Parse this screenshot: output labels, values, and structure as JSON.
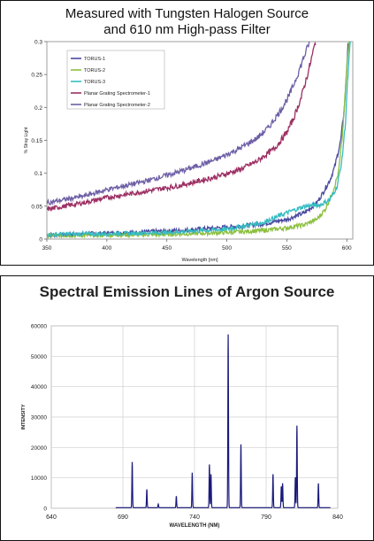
{
  "chart_data": [
    {
      "type": "line",
      "title_line1": "Measured with Tungsten Halogen Source",
      "title_line2": "and 610 nm High-pass Filter",
      "xlabel": "Wavelength [nm]",
      "ylabel": "% Stray Light",
      "xlim": [
        350,
        605
      ],
      "ylim": [
        0,
        0.3
      ],
      "xticks": [
        "350",
        "400",
        "450",
        "500",
        "550",
        "600"
      ],
      "yticks": [
        "0",
        "0.05",
        "0.1",
        "0.15",
        "0.2",
        "0.25",
        "0.3"
      ],
      "legend_position": "top-left",
      "series": [
        {
          "name": "TORUS-1",
          "color": "#4a4aa0",
          "x": [
            350,
            380,
            420,
            460,
            500,
            530,
            550,
            565,
            575,
            580,
            586,
            590,
            595,
            598,
            600,
            601
          ],
          "y": [
            0.006,
            0.008,
            0.01,
            0.013,
            0.018,
            0.023,
            0.03,
            0.04,
            0.055,
            0.07,
            0.09,
            0.11,
            0.15,
            0.2,
            0.26,
            0.3
          ]
        },
        {
          "name": "TORUS-2",
          "color": "#8cbf3f",
          "x": [
            350,
            400,
            450,
            500,
            530,
            550,
            565,
            575,
            582,
            588,
            593,
            596,
            598,
            600,
            602
          ],
          "y": [
            0.005,
            0.006,
            0.007,
            0.01,
            0.013,
            0.017,
            0.022,
            0.03,
            0.045,
            0.07,
            0.1,
            0.15,
            0.2,
            0.26,
            0.3
          ]
        },
        {
          "name": "TORUS-3",
          "color": "#35bcc2",
          "x": [
            350,
            400,
            450,
            500,
            530,
            550,
            565,
            578,
            586,
            592,
            596,
            599,
            601,
            603
          ],
          "y": [
            0.007,
            0.008,
            0.01,
            0.015,
            0.025,
            0.04,
            0.05,
            0.052,
            0.06,
            0.08,
            0.12,
            0.18,
            0.25,
            0.3
          ]
        },
        {
          "name": "Planar Grating Spectrometer-1",
          "color": "#9b2e62",
          "x": [
            350,
            380,
            400,
            430,
            460,
            490,
            510,
            525,
            540,
            550,
            556,
            562,
            568,
            574
          ],
          "y": [
            0.045,
            0.055,
            0.063,
            0.072,
            0.081,
            0.094,
            0.105,
            0.118,
            0.138,
            0.162,
            0.185,
            0.215,
            0.255,
            0.3
          ]
        },
        {
          "name": "Planar Grating Spectrometer-2",
          "color": "#6e5fa6",
          "x": [
            350,
            380,
            400,
            430,
            460,
            490,
            510,
            525,
            535,
            545,
            552,
            558,
            564,
            569
          ],
          "y": [
            0.055,
            0.065,
            0.075,
            0.087,
            0.102,
            0.12,
            0.137,
            0.153,
            0.17,
            0.196,
            0.218,
            0.245,
            0.275,
            0.3
          ]
        }
      ]
    },
    {
      "type": "line",
      "title": "Spectral Emission Lines of Argon Source",
      "xlabel": "WAVELENGTH (NM)",
      "ylabel": "INTENSITY",
      "xlim": [
        640,
        840
      ],
      "ylim": [
        0,
        60000
      ],
      "xticks": [
        "640",
        "690",
        "740",
        "790",
        "840"
      ],
      "yticks": [
        "0",
        "10000",
        "20000",
        "30000",
        "40000",
        "50000",
        "60000"
      ],
      "grid": true,
      "color": "#1a1a7a",
      "peaks": [
        {
          "x": 696.5,
          "y": 15000
        },
        {
          "x": 706.7,
          "y": 6000
        },
        {
          "x": 714.7,
          "y": 1200
        },
        {
          "x": 727.3,
          "y": 3800
        },
        {
          "x": 738.4,
          "y": 11500
        },
        {
          "x": 750.4,
          "y": 14200
        },
        {
          "x": 751.5,
          "y": 11000
        },
        {
          "x": 763.5,
          "y": 57000
        },
        {
          "x": 772.4,
          "y": 20800
        },
        {
          "x": 794.8,
          "y": 11000
        },
        {
          "x": 800.6,
          "y": 7000
        },
        {
          "x": 801.5,
          "y": 8000
        },
        {
          "x": 811.5,
          "y": 27000
        },
        {
          "x": 810.4,
          "y": 10000
        },
        {
          "x": 826.5,
          "y": 8000
        }
      ]
    }
  ]
}
